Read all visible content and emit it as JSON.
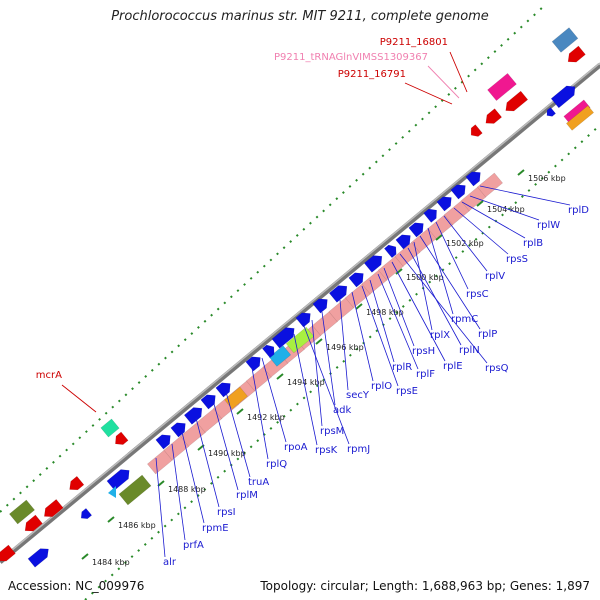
{
  "title": "Prochlorococcus marinus str. MIT 9211, complete genome",
  "footer": {
    "accession": "Accession: NC_009976",
    "topology": "Topology: circular; Length: 1,688,963 bp; Genes: 1,897"
  },
  "ticks": [
    "1484 kbp",
    "1486 kbp",
    "1488 kbp",
    "1490 kbp",
    "1492 kbp",
    "1494 kbp",
    "1496 kbp",
    "1498 kbp",
    "1500 kbp",
    "1502 kbp",
    "1504 kbp",
    "1506 kbp"
  ],
  "genes": [
    "rplD",
    "rplW",
    "rplB",
    "rpsS",
    "rplV",
    "rpsC",
    "rpmC",
    "rplP",
    "rplX",
    "rplN",
    "rpsQ",
    "rplE",
    "rpsH",
    "rplF",
    "rplR",
    "rpsE",
    "rplO",
    "secY",
    "adk",
    "rpsM",
    "rpmJ",
    "rpsK",
    "rpoA",
    "rplQ",
    "truA",
    "rplM",
    "rpsI",
    "rpmE",
    "prfA",
    "alr"
  ],
  "red_labels": {
    "p16801": "P9211_16801",
    "trna": "P9211_tRNAGlnVIMSS1309367",
    "p16791": "P9211_16791",
    "mcra": "mcrA"
  },
  "colors": {
    "forward_cds": "#0a10e0",
    "reverse_cds": "#e00000",
    "rrna_block": "#f0a0a0",
    "label_blue": "#1a1ad0",
    "label_red": "#cc0000",
    "label_pink": "#f080b0",
    "backbone": "#888888",
    "tick_green": "#2a8a2a"
  }
}
